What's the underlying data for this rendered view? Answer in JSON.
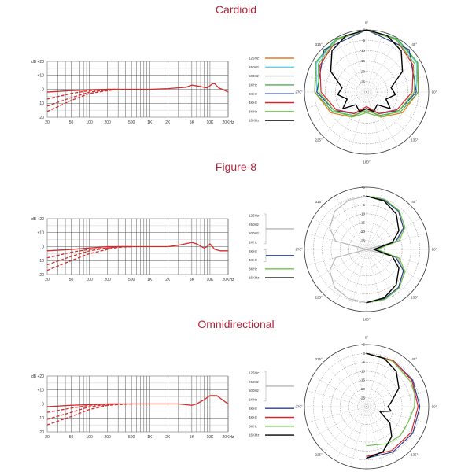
{
  "colors": {
    "title": "#b0243a",
    "response_curve": "#d42a2a",
    "f125": "#e07a1f",
    "f250": "#5fd0e8",
    "f500": "#b7b7b7",
    "f1k": "#4caf50",
    "f2k": "#2d3f8f",
    "f4k": "#d62828",
    "f8k": "#6cc24a",
    "f16k": "#000000"
  },
  "chart_data": [
    {
      "type": "line",
      "title": "Cardioid",
      "subtype": "frequency-response",
      "ylabel": "dB",
      "y_ticks": [
        "+20",
        "+10",
        "0",
        "-10",
        "-20"
      ],
      "y_tick_values": [
        20,
        10,
        0,
        -10,
        -20
      ],
      "ylim": [
        -20,
        20
      ],
      "x_ticks": [
        "20",
        "50",
        "100",
        "200",
        "500",
        "1K",
        "2K",
        "5K",
        "10K",
        "20KHz"
      ],
      "x_tick_values": [
        20,
        50,
        100,
        200,
        500,
        1000,
        2000,
        5000,
        10000,
        20000
      ],
      "xlim": [
        20,
        20000
      ],
      "x_scale": "log",
      "grid": true,
      "series": [
        {
          "style": "solid",
          "x": [
            20,
            50,
            100,
            200,
            500,
            1000,
            2000,
            4000,
            5000,
            7000,
            9000,
            11000,
            12000,
            14000,
            16000,
            20000
          ],
          "y": [
            -2,
            -1,
            -0.5,
            0,
            0,
            0,
            0.5,
            1.5,
            3,
            2,
            1,
            4,
            4,
            1,
            0,
            -2
          ]
        },
        {
          "style": "dashed",
          "x": [
            20,
            50,
            100,
            200,
            300
          ],
          "y": [
            -7,
            -3,
            -1,
            0,
            0
          ]
        },
        {
          "style": "dashed",
          "x": [
            20,
            50,
            100,
            200,
            300
          ],
          "y": [
            -12,
            -6,
            -2,
            -0.5,
            0
          ]
        },
        {
          "style": "dashed",
          "x": [
            20,
            50,
            100,
            200,
            300
          ],
          "y": [
            -16,
            -8,
            -3,
            -1,
            0
          ]
        }
      ]
    },
    {
      "type": "line",
      "title": "Figure-8",
      "subtype": "frequency-response",
      "ylabel": "dB",
      "y_ticks": [
        "+20",
        "+10",
        "0",
        "-10",
        "-20"
      ],
      "y_tick_values": [
        20,
        10,
        0,
        -10,
        -20
      ],
      "ylim": [
        -20,
        20
      ],
      "x_ticks": [
        "20",
        "50",
        "100",
        "200",
        "500",
        "1K",
        "2K",
        "5K",
        "10K",
        "20KHz"
      ],
      "x_tick_values": [
        20,
        50,
        100,
        200,
        500,
        1000,
        2000,
        5000,
        10000,
        20000
      ],
      "xlim": [
        20,
        20000
      ],
      "x_scale": "log",
      "grid": true,
      "series": [
        {
          "style": "solid",
          "x": [
            20,
            50,
            100,
            200,
            500,
            1000,
            2000,
            3000,
            5000,
            6000,
            8000,
            9000,
            10000,
            12000,
            15000,
            20000
          ],
          "y": [
            -3,
            -2,
            -1,
            0,
            0,
            0,
            0,
            1,
            3,
            2,
            -1,
            0,
            2,
            -2,
            -3,
            -3
          ]
        },
        {
          "style": "dashed",
          "x": [
            20,
            50,
            100,
            200,
            300,
            500
          ],
          "y": [
            -8,
            -4,
            -2,
            -1,
            0,
            0
          ]
        },
        {
          "style": "dashed",
          "x": [
            20,
            50,
            100,
            200,
            300,
            500
          ],
          "y": [
            -13,
            -7,
            -3,
            -1,
            0,
            0
          ]
        },
        {
          "style": "dashed",
          "x": [
            20,
            50,
            100,
            200,
            300,
            500
          ],
          "y": [
            -17,
            -10,
            -5,
            -2,
            -0.5,
            0
          ]
        }
      ]
    },
    {
      "type": "line",
      "title": "Omnidirectional",
      "subtype": "frequency-response",
      "ylabel": "dB",
      "y_ticks": [
        "+20",
        "+10",
        "0",
        "-10",
        "-20"
      ],
      "y_tick_values": [
        20,
        10,
        0,
        -10,
        -20
      ],
      "ylim": [
        -20,
        20
      ],
      "x_ticks": [
        "20",
        "50",
        "100",
        "200",
        "500",
        "1K",
        "2K",
        "5K",
        "10K",
        "20KHz"
      ],
      "x_tick_values": [
        20,
        50,
        100,
        200,
        500,
        1000,
        2000,
        5000,
        10000,
        20000
      ],
      "xlim": [
        20,
        20000
      ],
      "x_scale": "log",
      "grid": true,
      "series": [
        {
          "style": "solid",
          "x": [
            20,
            50,
            100,
            200,
            500,
            1000,
            2000,
            3000,
            5000,
            6000,
            8000,
            10000,
            13000,
            16000,
            20000
          ],
          "y": [
            -2,
            -1,
            -0.5,
            0,
            0,
            0,
            0,
            0,
            -1,
            0,
            3,
            6,
            6,
            3,
            0
          ]
        },
        {
          "style": "dashed",
          "x": [
            20,
            50,
            100,
            200,
            300
          ],
          "y": [
            -6,
            -3,
            -1,
            0,
            0
          ]
        },
        {
          "style": "dashed",
          "x": [
            20,
            50,
            100,
            200,
            300
          ],
          "y": [
            -11,
            -6,
            -2,
            -0.5,
            0
          ]
        },
        {
          "style": "dashed",
          "x": [
            20,
            50,
            100,
            200,
            300,
            500
          ],
          "y": [
            -15,
            -9,
            -4,
            -1,
            -0.5,
            0
          ]
        }
      ]
    }
  ],
  "polar_charts": [
    {
      "pattern": "Cardioid",
      "angle_labels": [
        "0°",
        "45°",
        "90°",
        "135°",
        "180°",
        "225°",
        "270°",
        "315°"
      ],
      "ring_labels": [
        "0",
        "-5",
        "-10",
        "-15",
        "-20",
        "-25"
      ],
      "legend": [
        {
          "label": "125Hz",
          "color_key": "f125",
          "style": "line"
        },
        {
          "label": "250Hz",
          "color_key": "f250",
          "style": "line"
        },
        {
          "label": "500Hz",
          "color_key": "f500",
          "style": "line"
        },
        {
          "label": "1KHz",
          "color_key": "f1k",
          "style": "line"
        },
        {
          "label": "2KHz",
          "color_key": "f2k",
          "style": "line"
        },
        {
          "label": "4KHz",
          "color_key": "f4k",
          "style": "line"
        },
        {
          "label": "8KHz",
          "color_key": "f8k",
          "style": "line"
        },
        {
          "label": "16KHz",
          "color_key": "f16k",
          "style": "line"
        }
      ],
      "series": [
        {
          "color_key": "f125",
          "angles": [
            0,
            30,
            60,
            90,
            120,
            150,
            165,
            180,
            195,
            210,
            240,
            270,
            300,
            330,
            360
          ],
          "db": [
            0,
            -0.5,
            -2,
            -5,
            -10,
            -16,
            -20,
            -22,
            -20,
            -16,
            -10,
            -5,
            -2,
            -0.5,
            0
          ]
        },
        {
          "color_key": "f250",
          "angles": [
            0,
            30,
            60,
            90,
            120,
            150,
            180,
            210,
            240,
            270,
            300,
            330,
            360
          ],
          "db": [
            0,
            -0.5,
            -2,
            -6,
            -12,
            -18,
            -22,
            -18,
            -12,
            -6,
            -2,
            -0.5,
            0
          ]
        },
        {
          "color_key": "f1k",
          "angles": [
            0,
            30,
            60,
            90,
            120,
            150,
            180,
            210,
            240,
            270,
            300,
            330,
            360
          ],
          "db": [
            0,
            -0.3,
            -1.5,
            -5,
            -11,
            -17,
            -21,
            -17,
            -11,
            -5,
            -1.5,
            -0.3,
            0
          ]
        },
        {
          "color_key": "f2k",
          "angles": [
            0,
            45,
            90,
            120,
            150,
            180,
            210,
            240,
            270,
            315,
            360
          ],
          "db": [
            0,
            -1,
            -6,
            -12,
            -18,
            -22,
            -18,
            -12,
            -6,
            -1,
            0
          ]
        },
        {
          "color_key": "f4k",
          "angles": [
            0,
            30,
            60,
            90,
            120,
            150,
            180,
            210,
            240,
            270,
            300,
            330,
            360
          ],
          "db": [
            0,
            -1,
            -4,
            -8,
            -13,
            -18,
            -23,
            -18,
            -13,
            -8,
            -4,
            -1,
            0
          ]
        },
        {
          "color_key": "f8k",
          "angles": [
            0,
            30,
            60,
            90,
            120,
            150,
            180,
            210,
            240,
            270,
            300,
            330,
            360
          ],
          "db": [
            0,
            -1,
            -3,
            -7,
            -12,
            -16,
            -20,
            -16,
            -12,
            -7,
            -3,
            -1,
            0
          ]
        },
        {
          "color_key": "f16k",
          "angles": [
            0,
            20,
            40,
            60,
            80,
            95,
            110,
            125,
            140,
            160,
            180,
            200,
            220,
            235,
            250,
            265,
            280,
            300,
            320,
            340,
            360
          ],
          "db": [
            0,
            -1,
            -4,
            -10,
            -18,
            -16,
            -20,
            -16,
            -22,
            -20,
            -22,
            -20,
            -22,
            -16,
            -20,
            -16,
            -18,
            -10,
            -4,
            -1,
            0
          ]
        }
      ]
    },
    {
      "pattern": "Figure-8",
      "angle_labels": [
        "45°",
        "90°",
        "135°",
        "180°",
        "225°",
        "270°",
        "315°"
      ],
      "ring_labels": [
        "+5",
        "0",
        "-5",
        "-10",
        "-15",
        "-20",
        "-25"
      ],
      "legend": [
        {
          "label": "125Hz",
          "color_key": "f500",
          "style": "bracket-start"
        },
        {
          "label": "250Hz",
          "color_key": "f500",
          "style": "bracket"
        },
        {
          "label": "500Hz",
          "color_key": "f500",
          "style": "bracket"
        },
        {
          "label": "1KHz",
          "color_key": "f500",
          "style": "bracket-end"
        },
        {
          "label": "2KHz",
          "color_key": "f2k",
          "style": "bracket-start"
        },
        {
          "label": "4KHz",
          "color_key": "f2k",
          "style": "bracket-end"
        },
        {
          "label": "8KHz",
          "color_key": "f8k",
          "style": "line"
        },
        {
          "label": "16KHz",
          "color_key": "f16k",
          "style": "line"
        }
      ],
      "series": [
        {
          "color_key": "f500",
          "angles": [
            0,
            20,
            40,
            60,
            75,
            90,
            105,
            120,
            140,
            160,
            180,
            200,
            220,
            240,
            255,
            270,
            285,
            300,
            320,
            340,
            360
          ],
          "db": [
            0,
            -0.5,
            -2,
            -6,
            -12,
            -40,
            -12,
            -6,
            -2,
            -0.5,
            0,
            -0.5,
            -2,
            -6,
            -12,
            -40,
            -12,
            -6,
            -2,
            -0.5,
            0
          ]
        },
        {
          "color_key": "f2k",
          "angles": [
            0,
            20,
            40,
            60,
            75,
            90,
            105,
            120,
            140,
            160,
            180
          ],
          "db": [
            0,
            -0.5,
            -2,
            -6,
            -13,
            -25,
            -13,
            -6,
            -2,
            -0.5,
            0
          ]
        },
        {
          "color_key": "f8k",
          "angles": [
            0,
            20,
            40,
            60,
            75,
            90,
            105,
            120,
            140,
            160,
            180
          ],
          "db": [
            0,
            0,
            -1.5,
            -5,
            -11,
            -24,
            -11,
            -5,
            -1.5,
            0,
            0
          ]
        },
        {
          "color_key": "f16k",
          "angles": [
            0,
            20,
            40,
            60,
            75,
            90,
            105,
            120,
            140,
            160,
            180
          ],
          "db": [
            0,
            -1,
            -4,
            -9,
            -15,
            -26,
            -15,
            -9,
            -4,
            -1,
            0
          ]
        }
      ]
    },
    {
      "pattern": "Omnidirectional",
      "angle_labels": [
        "0°",
        "45°",
        "90°",
        "135°",
        "180°",
        "225°",
        "270°",
        "315°"
      ],
      "ring_labels": [
        "+5",
        "0",
        "-5",
        "-10",
        "-15",
        "-20",
        "-25"
      ],
      "legend": [
        {
          "label": "125Hz",
          "color_key": "f500",
          "style": "bracket-start"
        },
        {
          "label": "250Hz",
          "color_key": "f500",
          "style": "bracket"
        },
        {
          "label": "500Hz",
          "color_key": "f500",
          "style": "bracket"
        },
        {
          "label": "1KHz",
          "color_key": "f500",
          "style": "bracket-end"
        },
        {
          "label": "2KHz",
          "color_key": "f2k",
          "style": "line"
        },
        {
          "label": "4KHz",
          "color_key": "f4k",
          "style": "line"
        },
        {
          "label": "8KHz",
          "color_key": "f8k",
          "style": "line"
        },
        {
          "label": "16KHz",
          "color_key": "f16k",
          "style": "line"
        }
      ],
      "series": [
        {
          "color_key": "f2k",
          "angles": [
            0,
            30,
            60,
            90,
            120,
            150,
            180
          ],
          "db": [
            0,
            0,
            0,
            0,
            0,
            -0.5,
            -1
          ]
        },
        {
          "color_key": "f4k",
          "angles": [
            0,
            30,
            60,
            90,
            120,
            150,
            180
          ],
          "db": [
            0,
            0,
            -0.5,
            -1,
            -1,
            -1.5,
            -2
          ]
        },
        {
          "color_key": "f8k",
          "angles": [
            0,
            30,
            60,
            75,
            90,
            110,
            130,
            150,
            180
          ],
          "db": [
            0,
            -0.5,
            -1.5,
            -2,
            -3,
            -5,
            -5,
            -6,
            -8
          ]
        },
        {
          "color_key": "f16k",
          "angles": [
            0,
            20,
            40,
            60,
            80,
            90,
            100,
            110,
            125,
            140,
            160,
            180
          ],
          "db": [
            0,
            -1,
            -4,
            -9,
            -16,
            -18,
            -16,
            -22,
            -14,
            -8,
            -3,
            -1
          ]
        }
      ]
    }
  ]
}
